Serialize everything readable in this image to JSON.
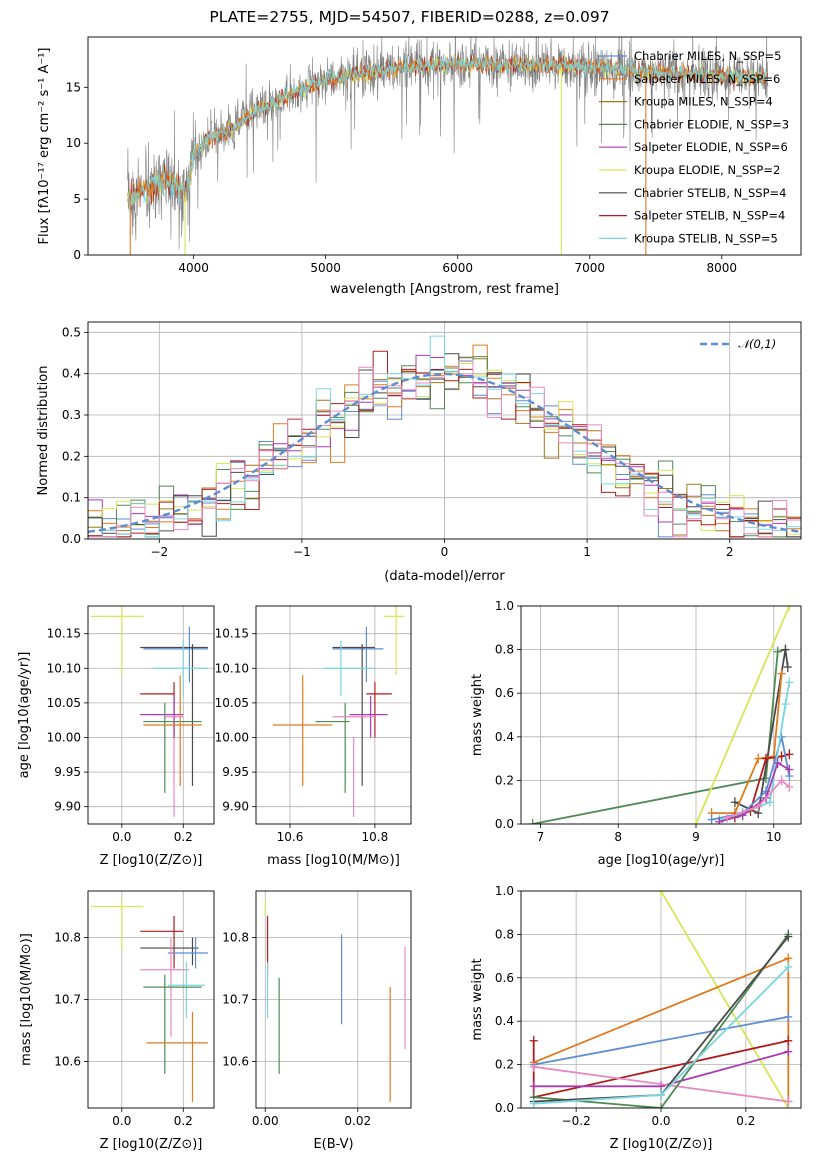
{
  "figure": {
    "title": "PLATE=2755, MJD=54507, FIBERID=0288, z=0.097"
  },
  "colors": {
    "chabrier_miles": "#5f8dd3",
    "salpeter_miles": "#e07a1f",
    "kroupa_miles": "#a07818",
    "chabrier_elodie": "#4f8a54",
    "salpeter_elodie": "#a93bb0",
    "kroupa_elodie": "#d7e556",
    "chabrier_stelib": "#4a4a4a",
    "salpeter_stelib": "#b01c1c",
    "kroupa_stelib": "#7ad7df",
    "gauss": "#5f8dd3",
    "pink": "#e68ac0",
    "data_spectrum": "#808080"
  },
  "chart_data": [
    {
      "id": "spectrum",
      "type": "line",
      "xlabel": "wavelength [Angstrom, rest frame]",
      "ylabel": "Flux [f_λ 10^-17 erg cm^-2 s^-1 A^-1]",
      "xlim": [
        3200,
        8600
      ],
      "ylim": [
        0,
        19.5
      ],
      "xticks": [
        4000,
        5000,
        6000,
        7000,
        8000
      ],
      "yticks": [
        0,
        5,
        10,
        15
      ],
      "grid": false,
      "legend": "top-right",
      "legend_entries": [
        "Chabrier MILES, N_SSP=5",
        "Salpeter MILES, N_SSP=6",
        "Kroupa MILES, N_SSP=4",
        "Chabrier ELODIE, N_SSP=3",
        "Salpeter ELODIE, N_SSP=6",
        "Kroupa ELODIE, N_SSP=2",
        "Chabrier STELIB, N_SSP=4",
        "Salpeter STELIB, N_SSP=4",
        "Kroupa STELIB, N_SSP=5"
      ],
      "continuum": {
        "x": [
          3500,
          3600,
          3700,
          3800,
          3900,
          3950,
          4000,
          4100,
          4200,
          4300,
          4400,
          4600,
          4800,
          5000,
          5200,
          5400,
          5600,
          5800,
          6000,
          6200,
          6400,
          6600,
          6800,
          7000,
          7200,
          7400,
          7600,
          7800,
          8000,
          8200,
          8350
        ],
        "y": [
          5.0,
          5.8,
          6.3,
          6.5,
          6.2,
          5.5,
          9.0,
          10.3,
          10.8,
          11.3,
          12.3,
          13.6,
          14.7,
          15.6,
          16.1,
          16.5,
          16.8,
          17.0,
          17.0,
          17.1,
          17.0,
          17.0,
          16.9,
          16.8,
          16.6,
          16.4,
          16.3,
          16.2,
          16.0,
          15.9,
          15.8
        ]
      },
      "dips": [
        {
          "x": 3520,
          "y": 0,
          "color": "salpeter_miles"
        },
        {
          "x": 3935,
          "y": 0,
          "color": "kroupa_elodie"
        },
        {
          "x": 6785,
          "y": 0,
          "color": "kroupa_elodie"
        },
        {
          "x": 7425,
          "y": 0,
          "color": "salpeter_miles"
        }
      ]
    },
    {
      "id": "residuals",
      "type": "bar",
      "xlabel": "(data-model)/error",
      "ylabel": "Normed distribution",
      "xlim": [
        -2.5,
        2.5
      ],
      "ylim": [
        0,
        0.525
      ],
      "xticks": [
        -2,
        -1,
        0,
        1,
        2
      ],
      "yticks": [
        0.0,
        0.1,
        0.2,
        0.3,
        0.4,
        0.5
      ],
      "grid": true,
      "legend": "top-right",
      "legend_entries": [
        "𝒩(0,1)"
      ],
      "bin_width": 0.1,
      "bin_start": -2.5
    },
    {
      "id": "age_vs_Z",
      "type": "scatter",
      "xlabel": "Z [log10(Z/Z⊙)]",
      "ylabel": "age [log10(age/yr)]",
      "xlim": [
        -0.11,
        0.3
      ],
      "ylim": [
        9.875,
        10.19
      ],
      "xticks": [
        0.0,
        0.2
      ],
      "yticks": [
        9.9,
        9.95,
        10.0,
        10.05,
        10.1,
        10.15
      ],
      "grid": true,
      "points": [
        {
          "c": "kroupa_elodie",
          "x": 0.0,
          "y": 10.175,
          "xe": [
            -0.1,
            0.07
          ],
          "ye": [
            10.09,
            10.19
          ]
        },
        {
          "c": "chabrier_miles",
          "x": 0.22,
          "y": 10.128,
          "xe": [
            0.07,
            0.28
          ],
          "ye": [
            10.08,
            10.16
          ]
        },
        {
          "c": "chabrier_stelib",
          "x": 0.23,
          "y": 10.13,
          "xe": [
            0.06,
            0.28
          ],
          "ye": [
            9.93,
            10.135
          ]
        },
        {
          "c": "kroupa_stelib",
          "x": 0.2,
          "y": 10.1,
          "xe": [
            0.1,
            0.28
          ],
          "ye": [
            10.06,
            10.14
          ]
        },
        {
          "c": "salpeter_stelib",
          "x": 0.17,
          "y": 10.063,
          "xe": [
            0.06,
            0.17
          ],
          "ye": [
            10.0,
            10.08
          ]
        },
        {
          "c": "salpeter_elodie",
          "x": 0.17,
          "y": 10.033,
          "xe": [
            0.06,
            0.2
          ],
          "ye": [
            10.0,
            10.06
          ]
        },
        {
          "c": "chabrier_elodie",
          "x": 0.14,
          "y": 10.023,
          "xe": [
            0.07,
            0.26
          ],
          "ye": [
            9.92,
            10.05
          ]
        },
        {
          "c": "salpeter_miles",
          "x": 0.19,
          "y": 10.018,
          "xe": [
            0.07,
            0.26
          ],
          "ye": [
            9.93,
            10.09
          ]
        },
        {
          "c": "pink",
          "x": 0.17,
          "y": 10.03,
          "xe": [
            0.14,
            0.2
          ],
          "ye": [
            9.885,
            10.0
          ]
        }
      ]
    },
    {
      "id": "age_vs_mass",
      "type": "scatter",
      "xlabel": "mass [log10(M/M⊙)]",
      "ylabel": "",
      "xlim": [
        10.52,
        10.885
      ],
      "ylim": [
        9.875,
        10.19
      ],
      "xticks": [
        10.6,
        10.8
      ],
      "yticks": [
        9.9,
        9.95,
        10.0,
        10.05,
        10.1,
        10.15
      ],
      "grid": true,
      "points": [
        {
          "c": "kroupa_elodie",
          "x": 10.85,
          "y": 10.175,
          "xe": [
            10.82,
            10.87
          ],
          "ye": [
            10.09,
            10.19
          ]
        },
        {
          "c": "chabrier_miles",
          "x": 10.78,
          "y": 10.128,
          "xe": [
            10.7,
            10.82
          ],
          "ye": [
            10.08,
            10.16
          ]
        },
        {
          "c": "chabrier_stelib",
          "x": 10.77,
          "y": 10.13,
          "xe": [
            10.7,
            10.8
          ],
          "ye": [
            9.93,
            10.135
          ]
        },
        {
          "c": "kroupa_stelib",
          "x": 10.72,
          "y": 10.1,
          "xe": [
            10.68,
            10.8
          ],
          "ye": [
            10.06,
            10.14
          ]
        },
        {
          "c": "salpeter_stelib",
          "x": 10.8,
          "y": 10.063,
          "xe": [
            10.78,
            10.84
          ],
          "ye": [
            10.0,
            10.08
          ]
        },
        {
          "c": "salpeter_elodie",
          "x": 10.79,
          "y": 10.033,
          "xe": [
            10.74,
            10.83
          ],
          "ye": [
            10.0,
            10.06
          ]
        },
        {
          "c": "chabrier_elodie",
          "x": 10.73,
          "y": 10.023,
          "xe": [
            10.66,
            10.74
          ],
          "ye": [
            9.92,
            10.05
          ]
        },
        {
          "c": "salpeter_miles",
          "x": 10.63,
          "y": 10.018,
          "xe": [
            10.56,
            10.7
          ],
          "ye": [
            9.93,
            10.09
          ]
        },
        {
          "c": "pink",
          "x": 10.75,
          "y": 10.03,
          "xe": [
            10.7,
            10.8
          ],
          "ye": [
            9.885,
            10.0
          ]
        }
      ]
    },
    {
      "id": "massweight_vs_age",
      "type": "line",
      "xlabel": "age [log10(age/yr)]",
      "ylabel": "mass weight",
      "xlim": [
        6.75,
        10.35
      ],
      "ylim": [
        0,
        1.0
      ],
      "xticks": [
        7,
        8,
        9,
        10
      ],
      "yticks": [
        0.0,
        0.2,
        0.4,
        0.6,
        0.8,
        1.0
      ],
      "grid": true,
      "series": [
        {
          "c": "chabrier_elodie",
          "x": [
            6.9,
            9.9,
            10.05,
            10.15
          ],
          "y": [
            0.0,
            0.21,
            0.79,
            0.8
          ]
        },
        {
          "c": "kroupa_elodie",
          "x": [
            9.0,
            10.2
          ],
          "y": [
            0.0,
            1.0
          ]
        },
        {
          "c": "chabrier_stelib",
          "x": [
            9.5,
            9.8,
            10.15,
            10.18
          ],
          "y": [
            0.1,
            0.05,
            0.8,
            0.72
          ]
        },
        {
          "c": "salpeter_miles",
          "x": [
            9.2,
            9.5,
            9.8,
            10.0,
            10.1
          ],
          "y": [
            0.05,
            0.05,
            0.3,
            0.31,
            0.69
          ]
        },
        {
          "c": "salpeter_stelib",
          "x": [
            9.5,
            9.7,
            9.9,
            10.1,
            10.2
          ],
          "y": [
            0.03,
            0.06,
            0.3,
            0.31,
            0.32
          ]
        },
        {
          "c": "chabrier_miles",
          "x": [
            9.2,
            9.6,
            9.9,
            10.1,
            10.2
          ],
          "y": [
            0.02,
            0.05,
            0.15,
            0.4,
            0.22
          ]
        },
        {
          "c": "kroupa_stelib",
          "x": [
            9.3,
            9.6,
            9.95,
            10.15,
            10.2
          ],
          "y": [
            0.02,
            0.05,
            0.1,
            0.55,
            0.65
          ]
        },
        {
          "c": "salpeter_elodie",
          "x": [
            9.3,
            9.6,
            9.9,
            10.05,
            10.2
          ],
          "y": [
            0.01,
            0.04,
            0.12,
            0.28,
            0.25
          ]
        },
        {
          "c": "pink",
          "x": [
            9.4,
            9.8,
            10.1,
            10.2
          ],
          "y": [
            0.03,
            0.08,
            0.2,
            0.17
          ]
        }
      ]
    },
    {
      "id": "mass_vs_Z",
      "type": "scatter",
      "xlabel": "Z [log10(Z/Z⊙)]",
      "ylabel": "mass [log10(M/M⊙)]",
      "xlim": [
        -0.11,
        0.3
      ],
      "ylim": [
        10.525,
        10.875
      ],
      "xticks": [
        0.0,
        0.2
      ],
      "yticks": [
        10.6,
        10.7,
        10.8
      ],
      "grid": true,
      "points": [
        {
          "c": "kroupa_elodie",
          "x": 0.0,
          "y": 10.85,
          "xe": [
            -0.1,
            0.07
          ],
          "ye": [
            10.78,
            10.86
          ]
        },
        {
          "c": "salpeter_stelib",
          "x": 0.17,
          "y": 10.81,
          "xe": [
            0.06,
            0.2
          ],
          "ye": [
            10.75,
            10.835
          ]
        },
        {
          "c": "chabrier_stelib",
          "x": 0.23,
          "y": 10.783,
          "xe": [
            0.06,
            0.25
          ],
          "ye": [
            10.755,
            10.8
          ]
        },
        {
          "c": "chabrier_miles",
          "x": 0.24,
          "y": 10.775,
          "xe": [
            0.15,
            0.28
          ],
          "ye": [
            10.75,
            10.8
          ]
        },
        {
          "c": "pink",
          "x": 0.16,
          "y": 10.748,
          "xe": [
            0.06,
            0.22
          ],
          "ye": [
            10.64,
            10.8
          ]
        },
        {
          "c": "kroupa_stelib",
          "x": 0.21,
          "y": 10.723,
          "xe": [
            0.15,
            0.27
          ],
          "ye": [
            10.67,
            10.76
          ]
        },
        {
          "c": "chabrier_elodie",
          "x": 0.14,
          "y": 10.72,
          "xe": [
            0.07,
            0.26
          ],
          "ye": [
            10.58,
            10.74
          ]
        },
        {
          "c": "salpeter_miles",
          "x": 0.23,
          "y": 10.63,
          "xe": [
            0.08,
            0.28
          ],
          "ye": [
            10.535,
            10.68
          ]
        }
      ]
    },
    {
      "id": "mass_vs_EBV",
      "type": "scatter",
      "xlabel": "E(B-V)",
      "ylabel": "",
      "xlim": [
        -0.002,
        0.0315
      ],
      "ylim": [
        10.525,
        10.875
      ],
      "xticks": [
        0.0,
        0.02
      ],
      "yticks": [
        10.6,
        10.7,
        10.8
      ],
      "grid": true,
      "points": [
        {
          "c": "kroupa_elodie",
          "x": 0.0,
          "y": 10.85,
          "ye": [
            10.835,
            10.86
          ]
        },
        {
          "c": "salpeter_stelib",
          "x": 0.0005,
          "y": 10.8,
          "ye": [
            10.74,
            10.835
          ]
        },
        {
          "c": "kroupa_stelib",
          "x": 0.0005,
          "y": 10.72,
          "ye": [
            10.67,
            10.76
          ]
        },
        {
          "c": "chabrier_elodie",
          "x": 0.003,
          "y": 10.66,
          "ye": [
            10.58,
            10.735
          ]
        },
        {
          "c": "chabrier_miles",
          "x": 0.0165,
          "y": 10.73,
          "ye": [
            10.66,
            10.805
          ]
        },
        {
          "c": "salpeter_miles",
          "x": 0.027,
          "y": 10.63,
          "ye": [
            10.535,
            10.72
          ]
        },
        {
          "c": "pink",
          "x": 0.0302,
          "y": 10.7,
          "ye": [
            10.62,
            10.785
          ]
        }
      ]
    },
    {
      "id": "massweight_vs_Z",
      "type": "line",
      "xlabel": "Z [log10(Z/Z⊙)]",
      "ylabel": "mass weight",
      "xlim": [
        -0.33,
        0.33
      ],
      "ylim": [
        0,
        1.0
      ],
      "xticks": [
        -0.2,
        0.0,
        0.2
      ],
      "yticks": [
        0.0,
        0.2,
        0.4,
        0.6,
        0.8,
        1.0
      ],
      "grid": true,
      "series": [
        {
          "c": "kroupa_elodie",
          "x": [
            0.0,
            0.3
          ],
          "y": [
            1.0,
            0.0
          ]
        },
        {
          "c": "salpeter_miles",
          "x": [
            -0.3,
            0.3,
            0.3
          ],
          "y": [
            0.21,
            0.69,
            0.03
          ]
        },
        {
          "c": "chabrier_miles",
          "x": [
            -0.3,
            0.3
          ],
          "y": [
            0.2,
            0.42
          ]
        },
        {
          "c": "salpeter_stelib",
          "x": [
            -0.3,
            -0.3,
            0.3
          ],
          "y": [
            0.31,
            0.05,
            0.31
          ]
        },
        {
          "c": "salpeter_elodie",
          "x": [
            -0.3,
            0.0,
            0.3
          ],
          "y": [
            0.1,
            0.1,
            0.26
          ]
        },
        {
          "c": "pink",
          "x": [
            -0.3,
            0.3
          ],
          "y": [
            0.19,
            0.03
          ]
        },
        {
          "c": "chabrier_elodie",
          "x": [
            -0.3,
            0.0,
            0.3
          ],
          "y": [
            0.05,
            0.0,
            0.8
          ]
        },
        {
          "c": "chabrier_stelib",
          "x": [
            -0.3,
            0.0,
            0.3
          ],
          "y": [
            0.03,
            0.06,
            0.79
          ]
        },
        {
          "c": "kroupa_stelib",
          "x": [
            -0.3,
            0.0,
            0.3
          ],
          "y": [
            0.02,
            0.06,
            0.65
          ]
        }
      ]
    }
  ]
}
